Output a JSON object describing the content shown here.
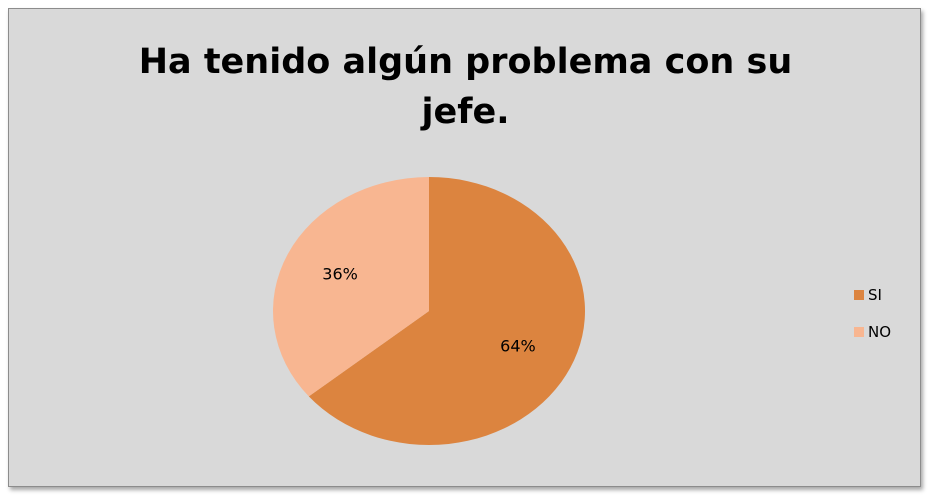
{
  "chart_data": {
    "type": "pie",
    "title_lines": [
      "Ha tenido algún problema con su",
      "jefe."
    ],
    "categories": [
      "SI",
      "NO"
    ],
    "values": [
      64,
      36
    ],
    "labels": [
      "64%",
      "36%"
    ],
    "colors": [
      "#dc843f",
      "#f8b691"
    ],
    "legend_position": "right"
  }
}
